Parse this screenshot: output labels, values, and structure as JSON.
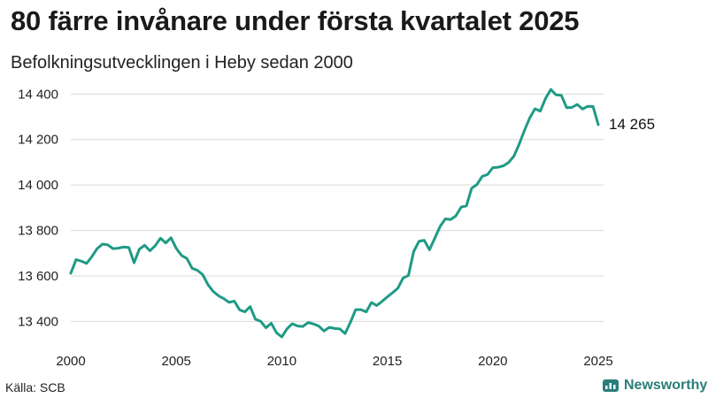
{
  "header": {
    "title": "80 färre invånare under första kvartalet 2025",
    "subtitle": "Befolkningsutvecklingen i Heby sedan 2000"
  },
  "footer": {
    "source": "Källa: SCB",
    "brand": "Newsworthy"
  },
  "colors": {
    "line": "#1f9a86",
    "grid": "#d9d9d9",
    "brand": "#2a7d79"
  },
  "chart_data": {
    "type": "line",
    "title": "80 färre invånare under första kvartalet 2025",
    "subtitle": "Befolkningsutvecklingen i Heby sedan 2000",
    "xlabel": "",
    "ylabel": "",
    "xlim": [
      2000,
      2025.25
    ],
    "ylim": [
      13320,
      14440
    ],
    "grid": true,
    "x_ticks": [
      {
        "value": 2000,
        "label": "2000"
      },
      {
        "value": 2005,
        "label": "2005"
      },
      {
        "value": 2010,
        "label": "2010"
      },
      {
        "value": 2015,
        "label": "2015"
      },
      {
        "value": 2020,
        "label": "2020"
      },
      {
        "value": 2025,
        "label": "2025"
      }
    ],
    "y_ticks": [
      {
        "value": 13400,
        "label": "13 400"
      },
      {
        "value": 13600,
        "label": "13 600"
      },
      {
        "value": 13800,
        "label": "13 800"
      },
      {
        "value": 14000,
        "label": "14 000"
      },
      {
        "value": 14200,
        "label": "14 200"
      },
      {
        "value": 14400,
        "label": "14 400"
      }
    ],
    "end_label": "14 265",
    "series": [
      {
        "points": [
          [
            2000.0,
            13612
          ],
          [
            2000.25,
            13672
          ],
          [
            2000.5,
            13665
          ],
          [
            2000.75,
            13655
          ],
          [
            2001.0,
            13685
          ],
          [
            2001.25,
            13720
          ],
          [
            2001.5,
            13740
          ],
          [
            2001.75,
            13737
          ],
          [
            2002.0,
            13720
          ],
          [
            2002.25,
            13722
          ],
          [
            2002.5,
            13727
          ],
          [
            2002.75,
            13725
          ],
          [
            2003.0,
            13658
          ],
          [
            2003.25,
            13718
          ],
          [
            2003.5,
            13735
          ],
          [
            2003.75,
            13711
          ],
          [
            2004.0,
            13733
          ],
          [
            2004.25,
            13766
          ],
          [
            2004.5,
            13745
          ],
          [
            2004.75,
            13768
          ],
          [
            2005.0,
            13721
          ],
          [
            2005.25,
            13690
          ],
          [
            2005.5,
            13677
          ],
          [
            2005.75,
            13634
          ],
          [
            2006.0,
            13625
          ],
          [
            2006.25,
            13606
          ],
          [
            2006.5,
            13562
          ],
          [
            2006.75,
            13532
          ],
          [
            2007.0,
            13513
          ],
          [
            2007.25,
            13500
          ],
          [
            2007.5,
            13484
          ],
          [
            2007.75,
            13489
          ],
          [
            2008.0,
            13451
          ],
          [
            2008.25,
            13442
          ],
          [
            2008.5,
            13465
          ],
          [
            2008.75,
            13410
          ],
          [
            2009.0,
            13400
          ],
          [
            2009.25,
            13372
          ],
          [
            2009.5,
            13392
          ],
          [
            2009.75,
            13350
          ],
          [
            2010.0,
            13332
          ],
          [
            2010.25,
            13368
          ],
          [
            2010.5,
            13390
          ],
          [
            2010.75,
            13380
          ],
          [
            2011.0,
            13378
          ],
          [
            2011.25,
            13395
          ],
          [
            2011.5,
            13389
          ],
          [
            2011.75,
            13380
          ],
          [
            2012.0,
            13358
          ],
          [
            2012.25,
            13374
          ],
          [
            2012.5,
            13369
          ],
          [
            2012.75,
            13367
          ],
          [
            2013.0,
            13347
          ],
          [
            2013.25,
            13396
          ],
          [
            2013.5,
            13452
          ],
          [
            2013.75,
            13452
          ],
          [
            2014.0,
            13442
          ],
          [
            2014.25,
            13483
          ],
          [
            2014.5,
            13470
          ],
          [
            2014.75,
            13488
          ],
          [
            2015.0,
            13508
          ],
          [
            2015.25,
            13526
          ],
          [
            2015.5,
            13546
          ],
          [
            2015.75,
            13591
          ],
          [
            2016.0,
            13602
          ],
          [
            2016.25,
            13707
          ],
          [
            2016.5,
            13752
          ],
          [
            2016.75,
            13757
          ],
          [
            2017.0,
            13715
          ],
          [
            2017.25,
            13766
          ],
          [
            2017.5,
            13817
          ],
          [
            2017.75,
            13851
          ],
          [
            2018.0,
            13848
          ],
          [
            2018.25,
            13864
          ],
          [
            2018.5,
            13903
          ],
          [
            2018.75,
            13908
          ],
          [
            2019.0,
            13986
          ],
          [
            2019.25,
            14002
          ],
          [
            2019.5,
            14038
          ],
          [
            2019.75,
            14046
          ],
          [
            2020.0,
            14076
          ],
          [
            2020.25,
            14078
          ],
          [
            2020.5,
            14084
          ],
          [
            2020.75,
            14099
          ],
          [
            2021.0,
            14127
          ],
          [
            2021.25,
            14179
          ],
          [
            2021.5,
            14240
          ],
          [
            2021.75,
            14295
          ],
          [
            2022.0,
            14335
          ],
          [
            2022.25,
            14325
          ],
          [
            2022.5,
            14380
          ],
          [
            2022.75,
            14420
          ],
          [
            2023.0,
            14396
          ],
          [
            2023.25,
            14394
          ],
          [
            2023.5,
            14340
          ],
          [
            2023.75,
            14341
          ],
          [
            2024.0,
            14354
          ],
          [
            2024.25,
            14334
          ],
          [
            2024.5,
            14346
          ],
          [
            2024.75,
            14345
          ],
          [
            2025.0,
            14265
          ]
        ]
      }
    ]
  }
}
